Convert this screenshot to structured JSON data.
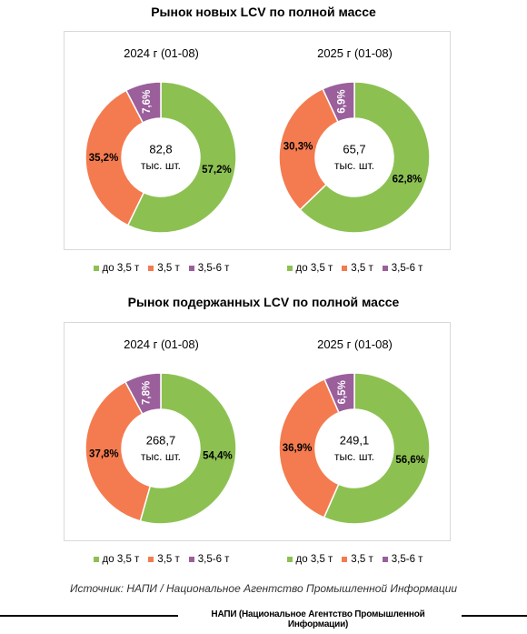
{
  "colors": {
    "green": "#8cc152",
    "orange": "#f47b4f",
    "purple": "#9b5f9c"
  },
  "charts_sections": [
    {
      "title": "Рынок новых LCV по полной массе"
    },
    {
      "title": "Рынок подержанных LCV по полной массе"
    }
  ],
  "chart_data": [
    {
      "type": "pie",
      "title": "2024 г (01-08)",
      "center_value": "82,8",
      "center_unit": "тыс. шт.",
      "categories": [
        "до 3,5 т",
        "3,5 т",
        "3,5-6 т"
      ],
      "values": [
        57.2,
        35.2,
        7.6
      ],
      "labels": [
        "57,2%",
        "35,2%",
        "7,6%"
      ],
      "legend_position": "bottom"
    },
    {
      "type": "pie",
      "title": "2025 г (01-08)",
      "center_value": "65,7",
      "center_unit": "тыс. шт.",
      "categories": [
        "до 3,5 т",
        "3,5 т",
        "3,5-6 т"
      ],
      "values": [
        62.8,
        30.3,
        6.9
      ],
      "labels": [
        "62,8%",
        "30,3%",
        "6,9%"
      ],
      "legend_position": "bottom"
    },
    {
      "type": "pie",
      "title": "2024 г (01-08)",
      "center_value": "268,7",
      "center_unit": "тыс. шт.",
      "categories": [
        "до 3,5 т",
        "3,5 т",
        "3,5-6 т"
      ],
      "values": [
        54.4,
        37.8,
        7.8
      ],
      "labels": [
        "54,4%",
        "37,8%",
        "7,8%"
      ],
      "legend_position": "bottom"
    },
    {
      "type": "pie",
      "title": "2025 г (01-08)",
      "center_value": "249,1",
      "center_unit": "тыс. шт.",
      "categories": [
        "до 3,5 т",
        "3,5 т",
        "3,5-6 т"
      ],
      "values": [
        56.6,
        36.9,
        6.5
      ],
      "labels": [
        "56,6%",
        "36,9%",
        "6,5%"
      ],
      "legend_position": "bottom"
    }
  ],
  "source": "Источник: НАПИ / Национальное Агентство Промышленной Информации",
  "footer": "НАПИ (Национальное Агентство Промышленной Информации)"
}
